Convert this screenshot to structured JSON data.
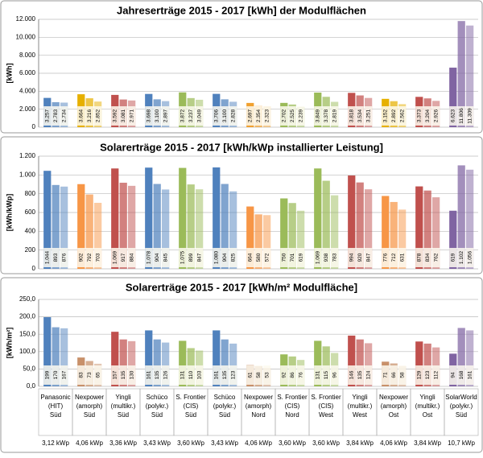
{
  "chart_data": [
    {
      "type": "bar",
      "title": "Jahreserträge 2015 - 2017 [kWh] der Modulflächen",
      "ylabel": "[kWh]",
      "ylim": [
        0,
        12000
      ],
      "yticks": [
        0,
        {
          "value": 2000,
          "label": "2.000"
        },
        {
          "value": 4000,
          "label": "4.000"
        },
        {
          "value": 6000,
          "label": "6.000"
        },
        {
          "value": 8000,
          "label": "8.000"
        },
        {
          "value": 10000,
          "label": "10.000"
        },
        {
          "value": 12000,
          "label": "12.000"
        }
      ],
      "grid": true,
      "colors": [
        "#4f81bd",
        "#e6b000",
        "#c0504d",
        "#4f81bd",
        "#9bbb59",
        "#4f81bd",
        "#f0a030",
        "#9bbb59",
        "#9bbb59",
        "#c0504d",
        "#e6b000",
        "#c0504d",
        "#8064a2"
      ],
      "values": [
        [
          3257,
          2783,
          2734
        ],
        [
          3664,
          3216,
          2852
        ],
        [
          3592,
          3081,
          2971
        ],
        [
          3698,
          3100,
          2897
        ],
        [
          3872,
          3237,
          3049
        ],
        [
          3706,
          3100,
          2828
        ],
        [
          2697,
          2354,
          2323
        ],
        [
          2702,
          2525,
          2239
        ],
        [
          3849,
          3378,
          2819
        ],
        [
          3818,
          3534,
          3251
        ],
        [
          3152,
          2892,
          2562
        ],
        [
          3373,
          3204,
          2926
        ],
        [
          6623,
          11806,
          11309
        ]
      ],
      "value_labels": [
        [
          "3.257",
          "2.783",
          "2.734"
        ],
        [
          "3.664",
          "3.216",
          "2.852"
        ],
        [
          "3.592",
          "3.081",
          "2.971"
        ],
        [
          "3.698",
          "3.100",
          "2.897"
        ],
        [
          "3.872",
          "3.237",
          "3.049"
        ],
        [
          "3.706",
          "3.100",
          "2.828"
        ],
        [
          "2.697",
          "2.354",
          "2.323"
        ],
        [
          "2.702",
          "2.525",
          "2.239"
        ],
        [
          "3.849",
          "3.378",
          "2.819"
        ],
        [
          "3.818",
          "3.534",
          "3.251"
        ],
        [
          "3.152",
          "2.892",
          "2.562"
        ],
        [
          "3.373",
          "3.204",
          "2.926"
        ],
        [
          "6.623",
          "11.806",
          "11.309"
        ]
      ]
    },
    {
      "type": "bar",
      "title": "Solarerträge 2015 - 2017 [kWh/kWp installierter Leistung]",
      "ylabel": "[kWh/kWp]",
      "ylim": [
        0,
        1200
      ],
      "yticks": [
        0,
        200,
        400,
        600,
        800,
        {
          "value": 1000,
          "label": "1.000"
        },
        {
          "value": 1200,
          "label": "1.200"
        }
      ],
      "grid": true,
      "colors": [
        "#4f81bd",
        "#f79646",
        "#c0504d",
        "#4f81bd",
        "#9bbb59",
        "#4f81bd",
        "#f79646",
        "#9bbb59",
        "#9bbb59",
        "#c0504d",
        "#f79646",
        "#c0504d",
        "#8064a2"
      ],
      "values": [
        [
          1044,
          893,
          876
        ],
        [
          902,
          792,
          703
        ],
        [
          1069,
          917,
          884
        ],
        [
          1078,
          904,
          845
        ],
        [
          1075,
          899,
          847
        ],
        [
          1080,
          904,
          825
        ],
        [
          664,
          580,
          572
        ],
        [
          750,
          701,
          619
        ],
        [
          1069,
          938,
          783
        ],
        [
          994,
          920,
          847
        ],
        [
          776,
          712,
          631
        ],
        [
          878,
          834,
          762
        ],
        [
          619,
          1102,
          1056
        ]
      ],
      "value_labels": [
        [
          "1.044",
          "893",
          "876"
        ],
        [
          "902",
          "792",
          "703"
        ],
        [
          "1.069",
          "917",
          "884"
        ],
        [
          "1.078",
          "904",
          "845"
        ],
        [
          "1.075",
          "899",
          "847"
        ],
        [
          "1.080",
          "904",
          "825"
        ],
        [
          "664",
          "580",
          "572"
        ],
        [
          "750",
          "701",
          "619"
        ],
        [
          "1.069",
          "938",
          "783"
        ],
        [
          "994",
          "920",
          "847"
        ],
        [
          "776",
          "712",
          "631"
        ],
        [
          "878",
          "834",
          "762"
        ],
        [
          "619",
          "1.102",
          "1.056"
        ]
      ]
    },
    {
      "type": "bar",
      "title": "Solarerträge 2015 - 2017 [kWh/m² Modulfläche]",
      "ylabel": "[kWh/m²]",
      "ylim": [
        0,
        250
      ],
      "yticks": [
        {
          "value": 0,
          "label": "0,0"
        },
        {
          "value": 50,
          "label": "50,0"
        },
        {
          "value": 100,
          "label": "100,0"
        },
        {
          "value": 150,
          "label": "150,0"
        },
        {
          "value": 200,
          "label": "200,0"
        },
        {
          "value": 250,
          "label": "250,0"
        }
      ],
      "grid": true,
      "colors": [
        "#4f81bd",
        "#c8906a",
        "#c0504d",
        "#4f81bd",
        "#9bbb59",
        "#4f81bd",
        "#c8906a",
        "#9bbb59",
        "#9bbb59",
        "#c0504d",
        "#c8906a",
        "#c0504d",
        "#8064a2"
      ],
      "values": [
        [
          199,
          170,
          167
        ],
        [
          83,
          73,
          65
        ],
        [
          157,
          135,
          130
        ],
        [
          161,
          135,
          126
        ],
        [
          131,
          110,
          103
        ],
        [
          161,
          135,
          123
        ],
        [
          61,
          58,
          53
        ],
        [
          92,
          86,
          76
        ],
        [
          131,
          115,
          96
        ],
        [
          146,
          135,
          124
        ],
        [
          71,
          66,
          58
        ],
        [
          129,
          123,
          112
        ],
        [
          94,
          168,
          161
        ]
      ],
      "categories": [
        [
          "Panasonic",
          "(HIT)",
          "Süd"
        ],
        [
          "Nexpower",
          "(amorph)",
          "Süd"
        ],
        [
          "Yingli",
          "(multikr.)",
          "Süd"
        ],
        [
          "Schüco",
          "(polykr.)",
          "Süd"
        ],
        [
          "S. Frontier",
          "(CIS)",
          "Süd"
        ],
        [
          "Schüco",
          "(polykr.)",
          "Süd"
        ],
        [
          "Nexpower",
          "(amorph)",
          "Nord"
        ],
        [
          "S. Frontier",
          "(CIS)",
          "Nord"
        ],
        [
          "S. Frontier",
          "(CIS)",
          "West"
        ],
        [
          "Yingli",
          "(multikr.)",
          "West"
        ],
        [
          "Nexpower",
          "(amorph)",
          "Ost"
        ],
        [
          "Yingli",
          "(multikr.)",
          "Ost"
        ],
        [
          "SolarWorld",
          "(polykr.)",
          "Süd"
        ]
      ],
      "power": [
        "3,12 kWp",
        "4,06 kWp",
        "3,36 kWp",
        "3,43 kWp",
        "3,60 kWp",
        "3,43 kWp",
        "4,06 kWp",
        "3,60 kWp",
        "3,60 kWp",
        "3,84 kWp",
        "4,06 kWp",
        "3,84 kWp",
        "10,7 kWp"
      ]
    }
  ]
}
